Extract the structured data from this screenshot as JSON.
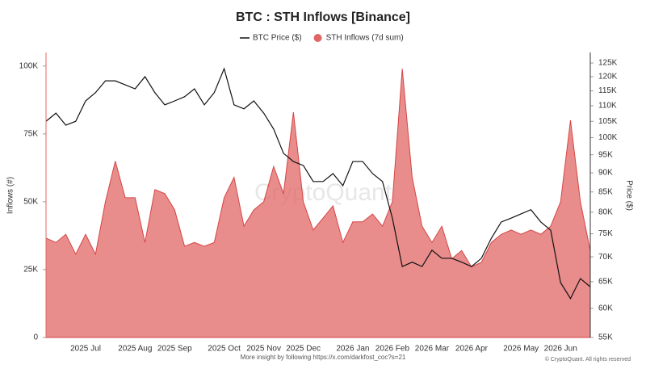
{
  "chart_data": {
    "type": "area_line",
    "title": "BTC : STH Inflows [Binance]",
    "watermark": "CryptoQuant",
    "footer": "More insight by following https://x.com/darkfost_coc?s=21",
    "copyright": "© CryptoQuant. All rights reserved",
    "y_label": "Inflows (#)",
    "y2_label": "Price ($)",
    "y2_log": true,
    "categories": [
      null,
      null,
      null,
      null,
      "2025 Jul",
      null,
      null,
      null,
      null,
      "2025 Aug",
      null,
      null,
      null,
      "2025 Sep",
      null,
      null,
      null,
      null,
      "2025 Oct",
      null,
      null,
      null,
      "2025 Nov",
      null,
      null,
      null,
      "2025 Dec",
      null,
      null,
      null,
      null,
      "2026 Jan",
      null,
      null,
      null,
      "2026 Feb",
      null,
      null,
      null,
      "2026 Mar",
      null,
      null,
      null,
      "2026 Apr",
      null,
      null,
      null,
      null,
      "2026 May",
      null,
      null,
      null,
      "2026 Jun",
      null,
      null,
      null
    ],
    "series": [
      {
        "name": "STH Inflows (7d sum)",
        "color": "#e06666",
        "kind": "area",
        "values": [
          36600,
          35000,
          38000,
          30700,
          38000,
          30700,
          50000,
          65000,
          51500,
          51500,
          35000,
          54500,
          53000,
          47000,
          33600,
          35000,
          33600,
          35000,
          51500,
          59000,
          41000,
          47000,
          50000,
          63000,
          53000,
          83000,
          50000,
          39600,
          44000,
          48500,
          35000,
          42600,
          42600,
          45500,
          41000,
          50000,
          99000,
          59000,
          41000,
          35000,
          41000,
          29000,
          32000,
          26000,
          27700,
          35000,
          38000,
          39600,
          38000,
          39600,
          38000,
          41000,
          50000,
          80000,
          50000,
          32000
        ]
      },
      {
        "name": "BTC Price ($)",
        "color": "#111111",
        "kind": "line",
        "axis": "y2",
        "values": [
          105000,
          107600,
          103800,
          105000,
          111600,
          114400,
          118500,
          118500,
          117100,
          115700,
          120000,
          114400,
          110300,
          111600,
          113000,
          115700,
          110300,
          114400,
          122900,
          110300,
          109000,
          111600,
          107600,
          102600,
          95400,
          93100,
          92000,
          87700,
          87700,
          89800,
          86600,
          93100,
          93100,
          89800,
          87700,
          78600,
          68000,
          68900,
          68000,
          71400,
          69700,
          69700,
          68900,
          68000,
          69700,
          74000,
          77700,
          78600,
          79600,
          80600,
          77700,
          75800,
          64800,
          61800,
          65600,
          64000
        ]
      }
    ],
    "ylim": [
      0,
      105000
    ],
    "yticks": [
      {
        "value": 0,
        "label": "0"
      },
      {
        "value": 25000,
        "label": "25K"
      },
      {
        "value": 50000,
        "label": "50K"
      },
      {
        "value": 75000,
        "label": "75K"
      },
      {
        "value": 100000,
        "label": "100K"
      }
    ],
    "y2lim": [
      55000,
      129000
    ],
    "y2ticks": [
      {
        "value": 55000,
        "label": "55K"
      },
      {
        "value": 60000,
        "label": "60K"
      },
      {
        "value": 65000,
        "label": "65K"
      },
      {
        "value": 70000,
        "label": "70K"
      },
      {
        "value": 75000,
        "label": "75K"
      },
      {
        "value": 80000,
        "label": "80K"
      },
      {
        "value": 85000,
        "label": "85K"
      },
      {
        "value": 90000,
        "label": "90K"
      },
      {
        "value": 95000,
        "label": "95K"
      },
      {
        "value": 100000,
        "label": "100K"
      },
      {
        "value": 105000,
        "label": "105K"
      },
      {
        "value": 110000,
        "label": "110K"
      },
      {
        "value": 115000,
        "label": "115K"
      },
      {
        "value": 120000,
        "label": "120K"
      },
      {
        "value": 125000,
        "label": "125K"
      }
    ]
  }
}
